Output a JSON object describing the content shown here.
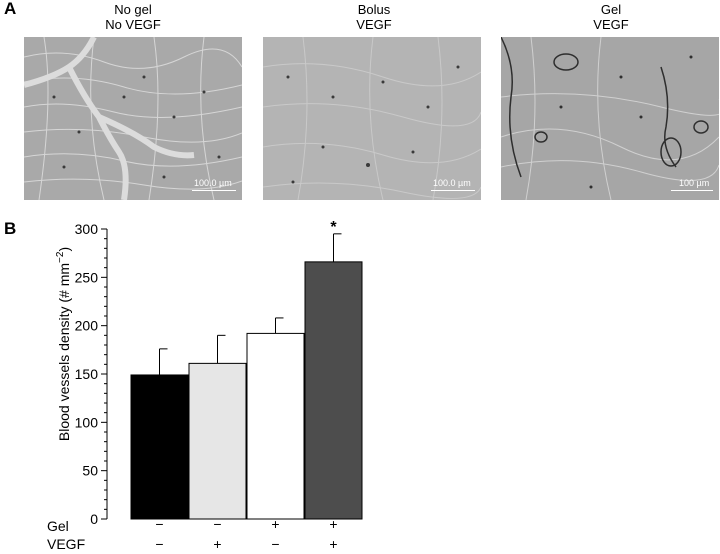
{
  "panel_a": {
    "letter": "A",
    "images": [
      {
        "title_line1": "No gel",
        "title_line2": "No VEGF",
        "scale_label": "100.0 µm"
      },
      {
        "title_line1": "Bolus",
        "title_line2": "VEGF",
        "scale_label": "100.0 µm"
      },
      {
        "title_line1": "Gel",
        "title_line2": "VEGF",
        "scale_label": "100 µm"
      }
    ]
  },
  "panel_b": {
    "letter": "B"
  },
  "chart_data": {
    "type": "bar",
    "title": "",
    "ylabel": "Blood vessels density (# mm",
    "ylabel_sup": "−2",
    "ylabel_close": ")",
    "ylim": [
      0,
      300
    ],
    "yticks": [
      0,
      50,
      100,
      150,
      200,
      250,
      300
    ],
    "grid": false,
    "legend": "none",
    "categories": [
      "Gel − / VEGF −",
      "Gel − / VEGF +",
      "Gel + / VEGF −",
      "Gel + / VEGF +"
    ],
    "row_labels": [
      "Gel",
      "VEGF"
    ],
    "condition_rows": [
      [
        "−",
        "−",
        "+",
        "+"
      ],
      [
        "−",
        "+",
        "−",
        "+"
      ]
    ],
    "values": [
      149,
      161,
      192,
      266
    ],
    "error_upper": [
      176,
      190,
      208,
      295
    ],
    "colors": [
      "#000000",
      "#e6e6e6",
      "#ffffff",
      "#4d4d4d"
    ],
    "annotations": [
      {
        "category_index": 3,
        "text": "*"
      }
    ]
  }
}
